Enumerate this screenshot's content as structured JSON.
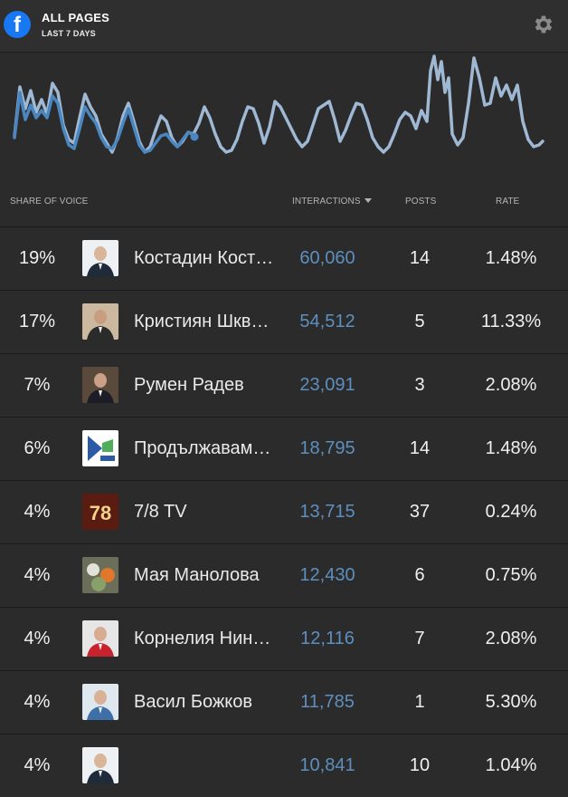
{
  "header": {
    "title": "ALL PAGES",
    "subtitle": "LAST 7 DAYS",
    "logo": "f"
  },
  "columns": {
    "share": "SHARE OF VOICE",
    "interactions": "INTERACTIONS",
    "posts": "POSTS",
    "rate": "RATE"
  },
  "colors": {
    "accent": "#5d8fbf",
    "line_light": "#9fb8d3",
    "line_dark": "#4a86bf",
    "brand": "#1877f2"
  },
  "rows": [
    {
      "share": "19%",
      "name": "Костадин Кост…",
      "interactions": "60,060",
      "posts": "14",
      "rate": "1.48%",
      "avatar": "white"
    },
    {
      "share": "17%",
      "name": "Кристиян Шкв…",
      "interactions": "54,512",
      "posts": "5",
      "rate": "11.33%",
      "avatar": "beige"
    },
    {
      "share": "7%",
      "name": "Румен Радев",
      "interactions": "23,091",
      "posts": "3",
      "rate": "2.08%",
      "avatar": "dark"
    },
    {
      "share": "6%",
      "name": "Продължавам…",
      "interactions": "18,795",
      "posts": "14",
      "rate": "1.48%",
      "avatar": "logo"
    },
    {
      "share": "4%",
      "name": "7/8 TV",
      "interactions": "13,715",
      "posts": "37",
      "rate": "0.24%",
      "avatar": "78",
      "avatar_text": "78"
    },
    {
      "share": "4%",
      "name": "Мая Манолова",
      "interactions": "12,430",
      "posts": "6",
      "rate": "0.75%",
      "avatar": "flowers"
    },
    {
      "share": "4%",
      "name": "Корнелия Нин…",
      "interactions": "12,116",
      "posts": "7",
      "rate": "2.08%",
      "avatar": "red"
    },
    {
      "share": "4%",
      "name": "Васил Божков",
      "interactions": "11,785",
      "posts": "1",
      "rate": "5.30%",
      "avatar": "blue"
    },
    {
      "share": "4%",
      "name": "",
      "interactions": "10,841",
      "posts": "10",
      "rate": "1.04%",
      "avatar": "white"
    }
  ]
}
